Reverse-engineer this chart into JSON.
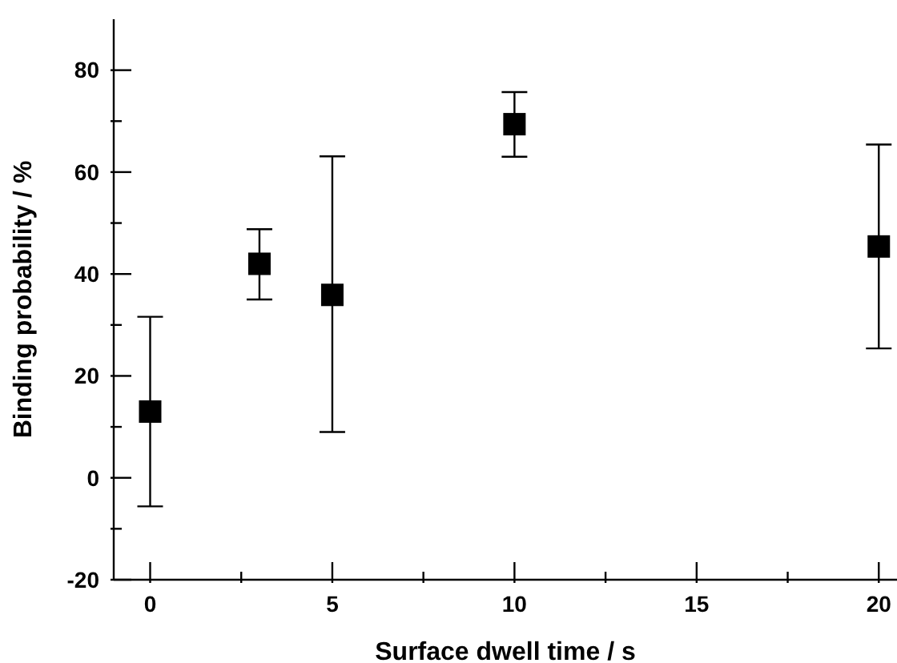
{
  "chart_data": {
    "type": "scatter",
    "xlabel": "Surface dwell time / s",
    "ylabel": "Binding probability / %",
    "x": [
      0,
      3,
      5,
      10,
      20
    ],
    "values": [
      13,
      42,
      35.9,
      69.4,
      45.4
    ],
    "errors": [
      [
        -5.6,
        31.6
      ],
      [
        35,
        48.8
      ],
      [
        9,
        63.1
      ],
      [
        63,
        75.7
      ],
      [
        25.4,
        65.4
      ]
    ],
    "color": "#000000",
    "marker": "square",
    "xlim": [
      -1,
      20.5
    ],
    "xticks": [
      0,
      {
        "value": 2.5,
        "label": null
      },
      5,
      {
        "value": 7.5,
        "label": null
      },
      10,
      {
        "value": 12.5,
        "label": null
      },
      15,
      {
        "value": 17.5,
        "label": null
      },
      20
    ],
    "ylim": [
      -20,
      90
    ],
    "yticks": [
      -20,
      {
        "value": -10,
        "label": null
      },
      0,
      {
        "value": 10,
        "label": null
      },
      20,
      {
        "value": 30,
        "label": null
      },
      40,
      {
        "value": 50,
        "label": null
      },
      60,
      {
        "value": 70,
        "label": null
      },
      80
    ],
    "grid": false,
    "legend": false
  }
}
